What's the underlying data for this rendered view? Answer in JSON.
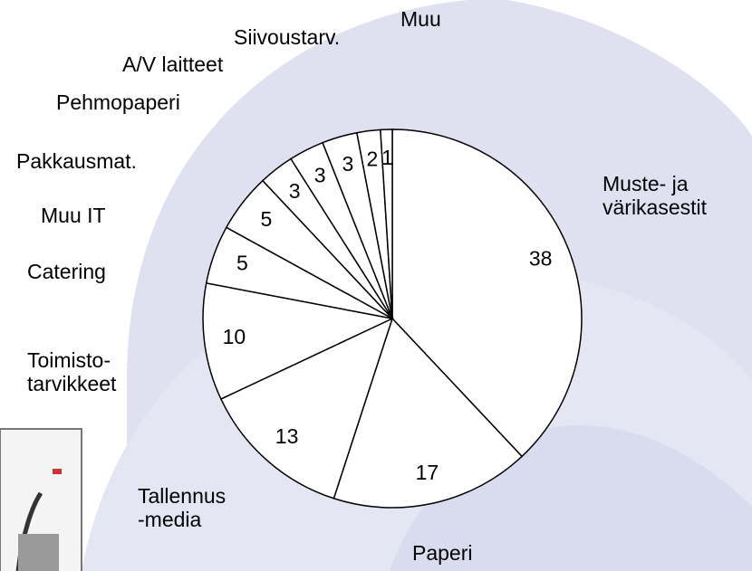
{
  "chart_data": {
    "type": "pie",
    "categories": [
      "Muste- ja\nvärikasestit",
      "Paperi",
      "Tallennus\n-media",
      "Toimisto-\ntarvikkeet",
      "Catering",
      "Muu IT",
      "Pakkausmat.",
      "Pehmopaperi",
      "A/V laitteet",
      "Siivoustarv.",
      "Muu"
    ],
    "values": [
      38,
      17,
      13,
      10,
      5,
      5,
      3,
      3,
      3,
      2,
      1
    ],
    "color": "#ffffff"
  }
}
